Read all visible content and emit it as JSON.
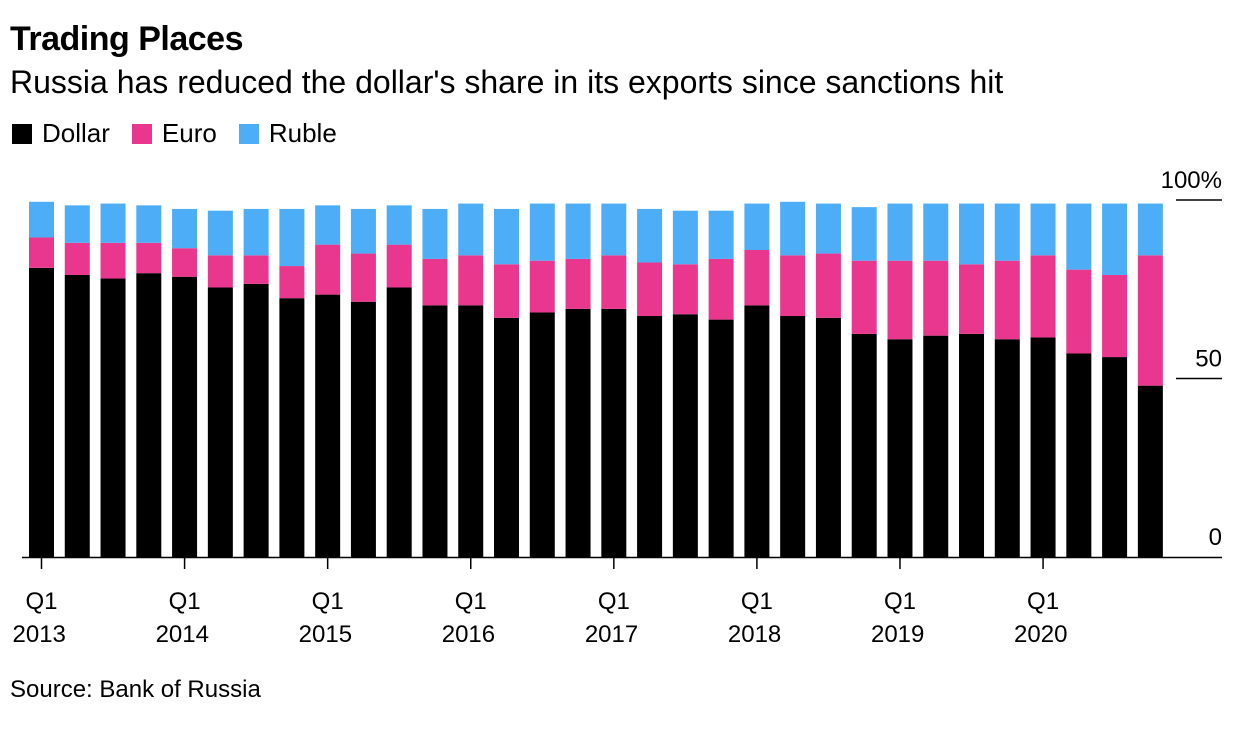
{
  "title": "Trading Places",
  "subtitle": "Russia has reduced the dollar's share in its exports since sanctions hit",
  "source": "Source: Bank of Russia",
  "colors": {
    "Dollar": "#000000",
    "Euro": "#e8378c",
    "Ruble": "#4dadf7"
  },
  "chart_data": {
    "type": "bar",
    "stacked": true,
    "categories": [
      "Q1 2013",
      "Q2 2013",
      "Q3 2013",
      "Q4 2013",
      "Q1 2014",
      "Q2 2014",
      "Q3 2014",
      "Q4 2014",
      "Q1 2015",
      "Q2 2015",
      "Q3 2015",
      "Q4 2015",
      "Q1 2016",
      "Q2 2016",
      "Q3 2016",
      "Q4 2016",
      "Q1 2017",
      "Q2 2017",
      "Q3 2017",
      "Q4 2017",
      "Q1 2018",
      "Q2 2018",
      "Q3 2018",
      "Q4 2018",
      "Q1 2019",
      "Q2 2019",
      "Q3 2019",
      "Q4 2019",
      "Q1 2020",
      "Q2 2020",
      "Q3 2020",
      "Q4 2020"
    ],
    "series": [
      {
        "name": "Dollar",
        "values": [
          81,
          79,
          78,
          79.5,
          78.5,
          75.5,
          76.5,
          72.5,
          73.5,
          71.5,
          75.5,
          70.5,
          70.5,
          67,
          68.5,
          69.5,
          69.5,
          67.5,
          68,
          66.5,
          70.5,
          67.5,
          67,
          62.5,
          61,
          62,
          62.5,
          61,
          61.5,
          57,
          56,
          48
        ]
      },
      {
        "name": "Euro",
        "values": [
          8.5,
          9,
          10,
          8.5,
          8,
          9,
          8,
          9,
          14,
          13.5,
          12,
          13,
          14,
          15,
          14.5,
          14,
          15,
          15,
          14,
          17,
          15.5,
          17,
          18,
          20.5,
          22,
          21,
          19.5,
          22,
          23,
          23.5,
          23,
          36.5
        ]
      },
      {
        "name": "Ruble",
        "values": [
          10,
          10.5,
          11,
          10.5,
          11,
          12.5,
          13,
          16,
          11,
          12.5,
          11,
          14,
          14.5,
          15.5,
          16,
          15.5,
          14.5,
          15,
          15,
          13.5,
          13,
          15,
          14,
          15,
          16,
          16,
          17,
          16,
          14.5,
          18.5,
          20,
          14.5
        ]
      }
    ],
    "xtick_labels": [
      {
        "index": 0,
        "q": "Q1",
        "year": "2013"
      },
      {
        "index": 4,
        "q": "Q1",
        "year": "2014"
      },
      {
        "index": 8,
        "q": "Q1",
        "year": "2015"
      },
      {
        "index": 12,
        "q": "Q1",
        "year": "2016"
      },
      {
        "index": 16,
        "q": "Q1",
        "year": "2017"
      },
      {
        "index": 20,
        "q": "Q1",
        "year": "2018"
      },
      {
        "index": 24,
        "q": "Q1",
        "year": "2019"
      },
      {
        "index": 28,
        "q": "Q1",
        "year": "2020"
      }
    ],
    "yticks": [
      {
        "value": 0,
        "label": "0"
      },
      {
        "value": 50,
        "label": "50"
      },
      {
        "value": 100,
        "label": "100%"
      }
    ],
    "ylim": [
      0,
      100
    ],
    "legend": {
      "placement": "top-left",
      "items": [
        "Dollar",
        "Euro",
        "Ruble"
      ]
    },
    "grid": false
  }
}
